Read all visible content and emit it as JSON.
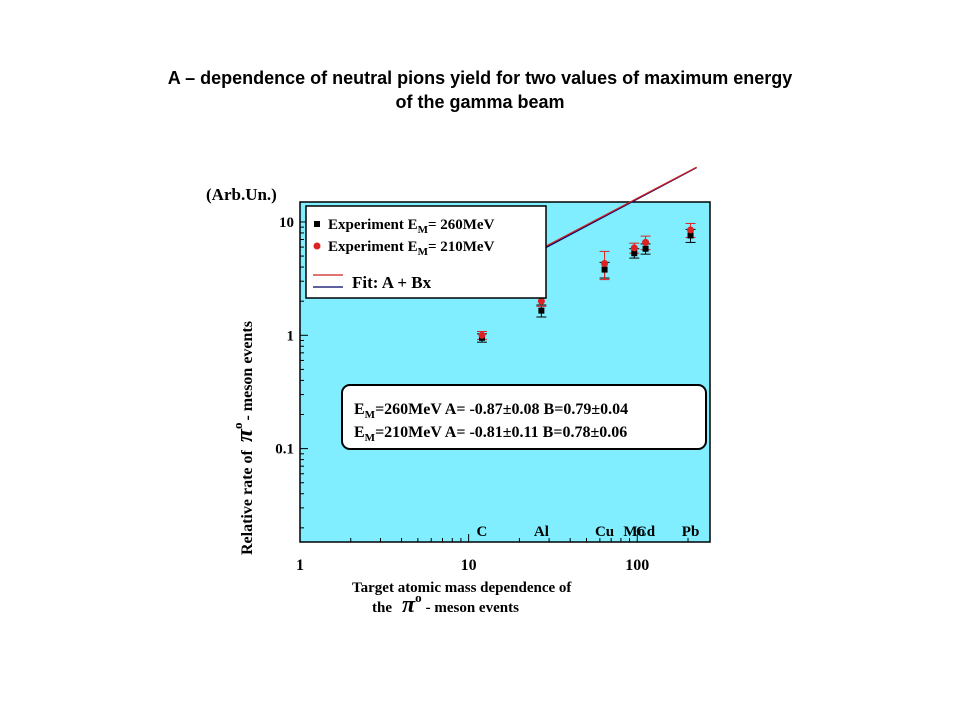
{
  "slide": {
    "title_line1": "A – dependence of neutral pions yield for two values of maximum energy",
    "title_line2": "of the gamma beam"
  },
  "chart_data": {
    "type": "scatter",
    "title": "",
    "ylabel_unit": "(Arb.Un.)",
    "ylabel_part1": "Relative rate of",
    "ylabel_symbol": "π",
    "ylabel_superscript": "o",
    "ylabel_part2": "- meson events",
    "xlabel_line1": "Target atomic mass  dependence of",
    "xlabel_line2_prefix": "the",
    "xlabel_line2_symbol": "π",
    "xlabel_line2_superscript": "o",
    "xlabel_line2_suffix": "- meson events",
    "x_scale": "log",
    "y_scale": "log",
    "xlim": [
      1,
      270
    ],
    "ylim": [
      0.015,
      15
    ],
    "x_ticks": [
      {
        "value": 1,
        "label": "1"
      },
      {
        "value": 10,
        "label": "10"
      },
      {
        "value": 100,
        "label": "100"
      }
    ],
    "y_ticks": [
      {
        "value": 10,
        "label": "10"
      },
      {
        "value": 1,
        "label": "1"
      },
      {
        "value": 0.1,
        "label": "0.1"
      }
    ],
    "element_labels": [
      {
        "label": "C",
        "x": 12
      },
      {
        "label": "Al",
        "x": 27
      },
      {
        "label": "Cu",
        "x": 64
      },
      {
        "label": "Mo",
        "x": 96
      },
      {
        "label": "Cd",
        "x": 112
      },
      {
        "label": "Pb",
        "x": 207
      }
    ],
    "legend_position": "top-left",
    "legend_prefix": "Experiment E",
    "legend_fit_label": "Fit: A + Bx",
    "series": [
      {
        "name_subscript": "M",
        "name_value": "= 260MeV",
        "color": "#000000",
        "marker": "square",
        "x": [
          12,
          27,
          64,
          96,
          112,
          207
        ],
        "y": [
          0.95,
          1.65,
          3.8,
          5.3,
          5.8,
          7.6
        ],
        "err": [
          0.08,
          0.2,
          0.6,
          0.5,
          0.6,
          1.0
        ]
      },
      {
        "name_subscript": "M",
        "name_value": "= 210MeV",
        "color": "#dd2222",
        "marker": "circle",
        "x": [
          12,
          27,
          64,
          96,
          112,
          207
        ],
        "y": [
          1.0,
          2.0,
          4.3,
          5.9,
          6.6,
          8.5
        ],
        "err": [
          0.08,
          0.2,
          1.2,
          0.6,
          0.9,
          1.2
        ]
      }
    ],
    "fits": [
      {
        "label": "260MeV",
        "color": "#000066",
        "A": -0.87,
        "B": 0.79
      },
      {
        "label": "210MeV",
        "color": "#cc2222",
        "A": -0.81,
        "B": 0.78
      }
    ],
    "fit_result_lines": [
      {
        "prefix": "E",
        "subscript": "M",
        "text": "=260MeV A= -0.87±0.08 B=0.79±0.04"
      },
      {
        "prefix": "E",
        "subscript": "M",
        "text": "=210MeV A= -0.81±0.11 B=0.78±0.06"
      }
    ],
    "colors": {
      "plot_background": "#80eeff",
      "legend_background": "#ffffff"
    }
  }
}
